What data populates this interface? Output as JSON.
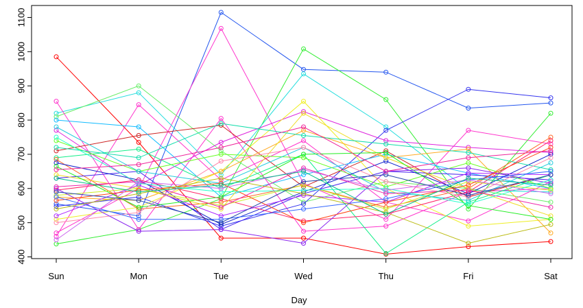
{
  "chart_data": {
    "type": "line",
    "xlabel": "Day",
    "ylabel": "",
    "title": "",
    "categories": [
      "Sun",
      "Mon",
      "Tue",
      "Wed",
      "Thu",
      "Fri",
      "Sat"
    ],
    "ylim": [
      395,
      1135
    ],
    "yticks": [
      400,
      500,
      600,
      700,
      800,
      900,
      1000,
      1100
    ],
    "grid": false,
    "legend": "none",
    "series": [
      {
        "color": "#FF0000",
        "values": [
          985,
          735,
          455,
          455,
          408,
          430,
          445
        ]
      },
      {
        "color": "#2255EE",
        "values": [
          555,
          520,
          1115,
          948,
          940,
          835,
          850
        ]
      },
      {
        "color": "#FF33CC",
        "values": [
          470,
          600,
          1068,
          615,
          510,
          770,
          730
        ]
      },
      {
        "color": "#33EE33",
        "values": [
          438,
          480,
          570,
          1008,
          860,
          540,
          820
        ]
      },
      {
        "color": "#22DDDD",
        "values": [
          820,
          880,
          640,
          935,
          780,
          595,
          590
        ]
      },
      {
        "color": "#66EE66",
        "values": [
          810,
          900,
          710,
          560,
          620,
          600,
          560
        ]
      },
      {
        "color": "#FF33CC",
        "values": [
          855,
          480,
          805,
          475,
          490,
          590,
          600
        ]
      },
      {
        "color": "#FF33CC",
        "values": [
          460,
          845,
          625,
          740,
          560,
          505,
          620
        ]
      },
      {
        "color": "#3333EE",
        "values": [
          548,
          575,
          490,
          555,
          770,
          890,
          865
        ]
      },
      {
        "color": "#DD22DD",
        "values": [
          770,
          610,
          735,
          825,
          740,
          720,
          705
        ]
      },
      {
        "color": "#CC2222",
        "values": [
          710,
          755,
          785,
          605,
          710,
          575,
          640
        ]
      },
      {
        "color": "#11BBFF",
        "values": [
          800,
          780,
          575,
          640,
          700,
          645,
          600
        ]
      },
      {
        "color": "#EEEE22",
        "values": [
          510,
          545,
          650,
          855,
          600,
          490,
          510
        ]
      },
      {
        "color": "#FFAA22",
        "values": [
          575,
          565,
          650,
          770,
          690,
          715,
          470
        ]
      },
      {
        "color": "#11EE88",
        "values": [
          690,
          715,
          600,
          700,
          410,
          560,
          640
        ]
      },
      {
        "color": "#FF6622",
        "values": [
          685,
          540,
          560,
          610,
          545,
          600,
          750
        ]
      },
      {
        "color": "#4422EE",
        "values": [
          630,
          650,
          480,
          585,
          650,
          640,
          625
        ]
      },
      {
        "color": "#66FF22",
        "values": [
          740,
          650,
          700,
          690,
          605,
          675,
          600
        ]
      },
      {
        "color": "#22CCDD",
        "values": [
          780,
          650,
          615,
          720,
          590,
          565,
          675
        ]
      },
      {
        "color": "#1122CC",
        "values": [
          675,
          625,
          495,
          590,
          680,
          585,
          700
        ]
      },
      {
        "color": "#FF2266",
        "values": [
          595,
          625,
          570,
          505,
          525,
          590,
          740
        ]
      },
      {
        "color": "#EEDD22",
        "values": [
          640,
          600,
          540,
          820,
          690,
          600,
          520
        ]
      },
      {
        "color": "#AA22FF",
        "values": [
          520,
          610,
          520,
          580,
          560,
          645,
          640
        ]
      },
      {
        "color": "#22EE22",
        "values": [
          665,
          545,
          575,
          700,
          705,
          550,
          510
        ]
      },
      {
        "color": "#CCEE22",
        "values": [
          580,
          600,
          550,
          610,
          540,
          620,
          595
        ]
      },
      {
        "color": "#11DDAA",
        "values": [
          720,
          690,
          790,
          755,
          730,
          705,
          655
        ]
      },
      {
        "color": "#FF88AA",
        "values": [
          500,
          530,
          680,
          720,
          620,
          575,
          690
        ]
      },
      {
        "color": "#8822EE",
        "values": [
          600,
          475,
          480,
          440,
          650,
          660,
          615
        ]
      },
      {
        "color": "#FF4411",
        "values": [
          565,
          595,
          615,
          500,
          560,
          610,
          720
        ]
      },
      {
        "color": "#3366FF",
        "values": [
          575,
          510,
          510,
          540,
          570,
          625,
          650
        ]
      },
      {
        "color": "#EE22AA",
        "values": [
          605,
          620,
          545,
          660,
          585,
          595,
          545
        ]
      },
      {
        "color": "#22FFCC",
        "values": [
          750,
          615,
          590,
          595,
          600,
          555,
          625
        ]
      },
      {
        "color": "#CC66EE",
        "values": [
          450,
          620,
          600,
          655,
          595,
          625,
          585
        ]
      },
      {
        "color": "#BBBB11",
        "values": [
          540,
          585,
          630,
          585,
          530,
          440,
          495
        ]
      },
      {
        "color": "#2244AA",
        "values": [
          590,
          565,
          500,
          620,
          640,
          580,
          640
        ]
      },
      {
        "color": "#EE2299",
        "values": [
          655,
          670,
          720,
          780,
          650,
          690,
          710
        ]
      },
      {
        "color": "#00BB88",
        "values": [
          630,
          590,
          610,
          650,
          525,
          630,
          610
        ]
      }
    ]
  }
}
